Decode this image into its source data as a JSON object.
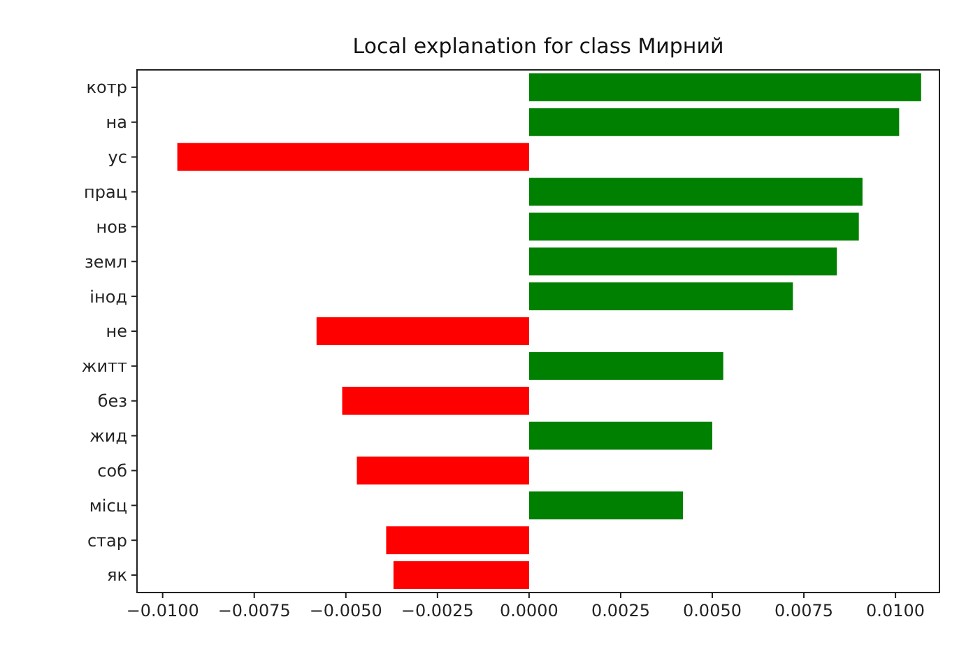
{
  "chart_data": {
    "type": "bar",
    "orientation": "horizontal",
    "title": "Local explanation for class Мирний",
    "categories": [
      "котр",
      "на",
      "ус",
      "прац",
      "нов",
      "земл",
      "інод",
      "не",
      "житт",
      "без",
      "жид",
      "соб",
      "місц",
      "стар",
      "як"
    ],
    "values": [
      0.0107,
      0.0101,
      -0.0096,
      0.0091,
      0.009,
      0.0084,
      0.0072,
      -0.0058,
      0.0053,
      -0.0051,
      0.005,
      -0.0047,
      0.0042,
      -0.0039,
      -0.0037
    ],
    "colors": [
      "#008000",
      "#008000",
      "#ff0000",
      "#008000",
      "#008000",
      "#008000",
      "#008000",
      "#ff0000",
      "#008000",
      "#ff0000",
      "#008000",
      "#ff0000",
      "#008000",
      "#ff0000",
      "#ff0000"
    ],
    "xlim": [
      -0.0107,
      0.0112
    ],
    "xticks": [
      {
        "value": -0.01,
        "label": "−0.0100"
      },
      {
        "value": -0.0075,
        "label": "−0.0075"
      },
      {
        "value": -0.005,
        "label": "−0.0050"
      },
      {
        "value": -0.0025,
        "label": "−0.0025"
      },
      {
        "value": 0,
        "label": "0.0000"
      },
      {
        "value": 0.0025,
        "label": "0.0025"
      },
      {
        "value": 0.005,
        "label": "0.0050"
      },
      {
        "value": 0.0075,
        "label": "0.0075"
      },
      {
        "value": 0.01,
        "label": "0.0100"
      }
    ],
    "grid": false
  }
}
